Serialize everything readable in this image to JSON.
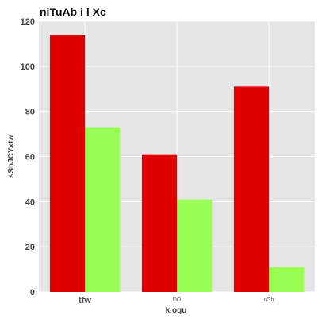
{
  "chart_data": {
    "type": "bar",
    "title": "niTuAb i l Xc",
    "xlabel": "k oqu",
    "ylabel": "sShJCYxtw",
    "categories": [
      "tfw",
      "DO",
      "cGh"
    ],
    "series": [
      {
        "values": [
          114,
          61,
          91
        ],
        "color": "#e00000"
      },
      {
        "values": [
          73,
          41,
          11
        ],
        "color": "#99ff55"
      }
    ],
    "ylim": [
      0,
      120
    ],
    "yticks": [
      0,
      20,
      40,
      60,
      80,
      100,
      120
    ],
    "grid": true,
    "background": "#e5e5e5",
    "grid_color": "#ffffff"
  }
}
